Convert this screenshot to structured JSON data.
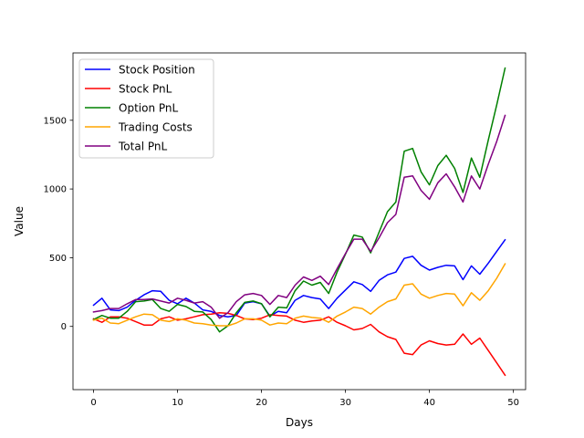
{
  "chart_data": {
    "type": "line",
    "title": "",
    "xlabel": "Days",
    "ylabel": "Value",
    "xlim": [
      -2.45,
      51.45
    ],
    "ylim": [
      -460,
      1990
    ],
    "x_ticks": [
      0,
      10,
      20,
      30,
      40,
      50
    ],
    "y_ticks": [
      0,
      500,
      1000,
      1500
    ],
    "grid": false,
    "legend_position": "top-left",
    "x": [
      0,
      1,
      2,
      3,
      4,
      5,
      6,
      7,
      8,
      9,
      10,
      11,
      12,
      13,
      14,
      15,
      16,
      17,
      18,
      19,
      20,
      21,
      22,
      23,
      24,
      25,
      26,
      27,
      28,
      29,
      30,
      31,
      32,
      33,
      34,
      35,
      36,
      37,
      38,
      39,
      40,
      41,
      42,
      43,
      44,
      45,
      46,
      47,
      48,
      49
    ],
    "series": [
      {
        "name": "Stock Position",
        "color": "#0000ff",
        "values": [
          155,
          205,
          120,
          115,
          140,
          190,
          230,
          260,
          255,
          190,
          165,
          205,
          170,
          120,
          110,
          80,
          70,
          80,
          170,
          180,
          165,
          75,
          110,
          100,
          190,
          225,
          210,
          200,
          130,
          205,
          265,
          325,
          305,
          255,
          335,
          375,
          395,
          495,
          510,
          445,
          410,
          430,
          445,
          440,
          340,
          440,
          380,
          460,
          545,
          630
        ]
      },
      {
        "name": "Stock PnL",
        "color": "#ff0000",
        "values": [
          55,
          30,
          70,
          70,
          60,
          35,
          10,
          10,
          55,
          70,
          45,
          55,
          70,
          85,
          90,
          100,
          95,
          80,
          55,
          50,
          60,
          85,
          80,
          75,
          45,
          30,
          40,
          45,
          70,
          30,
          5,
          -25,
          -15,
          15,
          -40,
          -75,
          -95,
          -195,
          -205,
          -135,
          -105,
          -125,
          -135,
          -130,
          -55,
          -130,
          -85,
          -175,
          -265,
          -355
        ]
      },
      {
        "name": "Option PnL",
        "color": "#008000",
        "values": [
          50,
          80,
          60,
          60,
          110,
          180,
          185,
          195,
          130,
          110,
          160,
          145,
          110,
          105,
          50,
          -40,
          5,
          100,
          175,
          185,
          165,
          70,
          140,
          135,
          260,
          330,
          300,
          320,
          240,
          395,
          525,
          665,
          650,
          535,
          685,
          835,
          905,
          1275,
          1295,
          1125,
          1030,
          1170,
          1245,
          1150,
          975,
          1225,
          1085,
          1355,
          1610,
          1880
        ]
      },
      {
        "name": "Trading Costs",
        "color": "#ffa500",
        "values": [
          45,
          60,
          25,
          20,
          45,
          70,
          90,
          85,
          45,
          35,
          55,
          45,
          25,
          20,
          10,
          5,
          5,
          25,
          55,
          55,
          45,
          10,
          25,
          20,
          60,
          75,
          65,
          60,
          30,
          75,
          105,
          140,
          130,
          90,
          140,
          180,
          200,
          300,
          310,
          235,
          205,
          225,
          240,
          235,
          150,
          245,
          190,
          260,
          350,
          455
        ]
      },
      {
        "name": "Total PnL",
        "color": "#800080",
        "values": [
          105,
          115,
          130,
          130,
          165,
          195,
          195,
          200,
          185,
          170,
          205,
          190,
          170,
          180,
          140,
          60,
          100,
          180,
          230,
          240,
          225,
          160,
          225,
          210,
          300,
          360,
          335,
          365,
          305,
          420,
          530,
          635,
          635,
          545,
          645,
          755,
          815,
          1085,
          1095,
          990,
          925,
          1045,
          1110,
          1015,
          905,
          1095,
          1000,
          1180,
          1345,
          1535
        ]
      }
    ]
  }
}
